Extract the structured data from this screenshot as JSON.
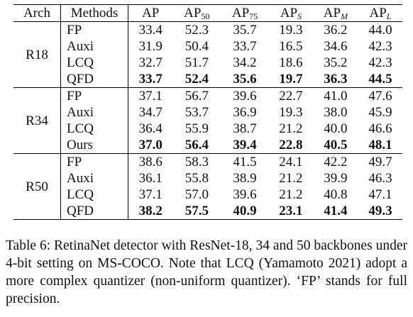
{
  "table": {
    "headers": {
      "arch": "Arch",
      "methods": "Methods",
      "ap": "AP",
      "ap50": {
        "base": "AP",
        "sub": "50"
      },
      "ap75": {
        "base": "AP",
        "sub": "75"
      },
      "aps": {
        "base": "AP",
        "sub": "S"
      },
      "apm": {
        "base": "AP",
        "sub": "M"
      },
      "apl": {
        "base": "AP",
        "sub": "L"
      }
    },
    "groups": [
      {
        "arch": "R18",
        "rows": [
          {
            "method": "FP",
            "values": [
              "33.4",
              "52.3",
              "35.7",
              "19.3",
              "36.2",
              "44.0"
            ]
          },
          {
            "method": "Auxi",
            "values": [
              "31.9",
              "50.4",
              "33.7",
              "16.5",
              "34.6",
              "42.3"
            ]
          },
          {
            "method": "LCQ",
            "values": [
              "32.7",
              "51.7",
              "34.2",
              "18.6",
              "35.2",
              "42.3"
            ]
          },
          {
            "method": "QFD",
            "values": [
              "33.7",
              "52.4",
              "35.6",
              "19.7",
              "36.3",
              "44.5"
            ]
          }
        ]
      },
      {
        "arch": "R34",
        "rows": [
          {
            "method": "FP",
            "values": [
              "37.1",
              "56.7",
              "39.6",
              "22.7",
              "41.0",
              "47.6"
            ]
          },
          {
            "method": "Auxi",
            "values": [
              "34.7",
              "53.7",
              "36.9",
              "19.3",
              "38.0",
              "45.9"
            ]
          },
          {
            "method": "LCQ",
            "values": [
              "36.4",
              "55.9",
              "38.7",
              "21.2",
              "40.0",
              "46.6"
            ]
          },
          {
            "method": "Ours",
            "values": [
              "37.0",
              "56.4",
              "39.4",
              "22.8",
              "40.5",
              "48.1"
            ]
          }
        ]
      },
      {
        "arch": "R50",
        "rows": [
          {
            "method": "FP",
            "values": [
              "38.6",
              "58.3",
              "41.5",
              "24.1",
              "42.2",
              "49.7"
            ]
          },
          {
            "method": "Auxi",
            "values": [
              "36.1",
              "55.8",
              "38.9",
              "21.2",
              "39.9",
              "46.3"
            ]
          },
          {
            "method": "LCQ",
            "values": [
              "37.1",
              "57.0",
              "39.6",
              "21.2",
              "40.8",
              "47.1"
            ]
          },
          {
            "method": "QFD",
            "values": [
              "38.2",
              "57.5",
              "40.9",
              "23.1",
              "41.4",
              "49.3"
            ]
          }
        ]
      }
    ]
  },
  "caption": "Table 6: RetinaNet detector with ResNet-18, 34 and 50 backbones under 4-bit setting on MS-COCO. Note that LCQ (Yamamoto 2021) adopt a more complex quantizer (non-uniform quantizer). ‘FP’ stands for full precision."
}
